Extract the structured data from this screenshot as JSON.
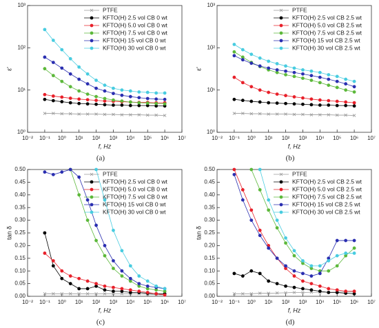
{
  "chart_data": [
    {
      "type": "line",
      "caption": "(a)",
      "xlabel": "f, Hz",
      "ylabel": "ε'",
      "xscale": "log",
      "yscale": "log",
      "x": [
        0.1,
        0.316,
        1,
        3.16,
        10,
        31.6,
        100,
        316,
        1000,
        3162,
        10000,
        31623,
        100000,
        316228,
        1000000
      ],
      "xlim": [
        0.01,
        10000000
      ],
      "xticks": [
        {
          "value": 0.01,
          "label": "10⁻²"
        },
        {
          "value": 0.1,
          "label": "10⁻¹"
        },
        {
          "value": 1,
          "label": "10⁰"
        },
        {
          "value": 10,
          "label": "10¹"
        },
        {
          "value": 100,
          "label": "10²"
        },
        {
          "value": 1000,
          "label": "10³"
        },
        {
          "value": 10000,
          "label": "10⁴"
        },
        {
          "value": 100000,
          "label": "10⁵"
        },
        {
          "value": 1000000,
          "label": "10⁶"
        },
        {
          "value": 10000000,
          "label": "10⁷"
        }
      ],
      "ylim": [
        1,
        1000
      ],
      "yticks": [
        {
          "value": 1,
          "label": "10⁰"
        },
        {
          "value": 10,
          "label": "10¹"
        },
        {
          "value": 100,
          "label": "10²"
        },
        {
          "value": 1000,
          "label": "10³"
        }
      ],
      "series": [
        {
          "name": "PTFE",
          "color": "#9a9a9a",
          "marker": "x",
          "values": [
            2.8,
            2.8,
            2.75,
            2.75,
            2.7,
            2.7,
            2.7,
            2.65,
            2.65,
            2.6,
            2.6,
            2.6,
            2.55,
            2.55,
            2.5
          ]
        },
        {
          "name": "KFTO(H) 2.5 vol CB 0 wt",
          "color": "#000000",
          "marker": "circle",
          "values": [
            6,
            5.6,
            5.3,
            5.0,
            4.8,
            4.7,
            4.6,
            4.5,
            4.4,
            4.4,
            4.3,
            4.3,
            4.3,
            4.2,
            4.2
          ]
        },
        {
          "name": "KFTO(H) 5.0 vol CB 0 wt",
          "color": "#e8202a",
          "marker": "circle",
          "values": [
            7.8,
            7.2,
            6.8,
            6.4,
            6.1,
            5.9,
            5.7,
            5.5,
            5.4,
            5.3,
            5.2,
            5.1,
            5.1,
            5.0,
            5.0
          ]
        },
        {
          "name": "KFTO(H) 7.5 vol CB 0 wt",
          "color": "#5cb83a",
          "marker": "circle",
          "values": [
            32,
            22,
            16,
            12,
            9.5,
            8,
            7,
            6.3,
            5.8,
            5.5,
            5.2,
            5,
            4.9,
            4.8,
            4.7
          ]
        },
        {
          "name": "KFTO(H) 15 vol CB 0 wt",
          "color": "#2a2eb0",
          "marker": "circle",
          "values": [
            60,
            45,
            33,
            24,
            18,
            14,
            11,
            9.5,
            8.3,
            7.5,
            7,
            6.6,
            6.3,
            6.1,
            6
          ]
        },
        {
          "name": "KFTO(H) 30 vol CB 0 wt",
          "color": "#48cce0",
          "marker": "circle",
          "values": [
            270,
            150,
            90,
            55,
            35,
            24,
            17,
            13,
            11,
            10,
            9.5,
            9,
            8.8,
            8.5,
            8.5
          ]
        }
      ]
    },
    {
      "type": "line",
      "caption": "(b)",
      "xlabel": "f, Hz",
      "ylabel": "ε'",
      "xscale": "log",
      "yscale": "log",
      "x": [
        0.1,
        0.316,
        1,
        3.16,
        10,
        31.6,
        100,
        316,
        1000,
        3162,
        10000,
        31623,
        100000,
        316228,
        1000000
      ],
      "xlim": [
        0.01,
        10000000
      ],
      "xticks": [
        {
          "value": 0.01,
          "label": "10⁻²"
        },
        {
          "value": 0.1,
          "label": "10⁻¹"
        },
        {
          "value": 1,
          "label": "10⁰"
        },
        {
          "value": 10,
          "label": "10¹"
        },
        {
          "value": 100,
          "label": "10²"
        },
        {
          "value": 1000,
          "label": "10³"
        },
        {
          "value": 10000,
          "label": "10⁴"
        },
        {
          "value": 100000,
          "label": "10⁵"
        },
        {
          "value": 1000000,
          "label": "10⁶"
        },
        {
          "value": 10000000,
          "label": "10⁷"
        }
      ],
      "ylim": [
        1,
        1000
      ],
      "yticks": [
        {
          "value": 1,
          "label": "10⁰"
        },
        {
          "value": 10,
          "label": "10¹"
        },
        {
          "value": 100,
          "label": "10²"
        },
        {
          "value": 1000,
          "label": "10³"
        }
      ],
      "series": [
        {
          "name": "PTFE",
          "color": "#9a9a9a",
          "marker": "x",
          "values": [
            2.8,
            2.8,
            2.75,
            2.75,
            2.7,
            2.7,
            2.7,
            2.65,
            2.65,
            2.6,
            2.6,
            2.6,
            2.55,
            2.55,
            2.5
          ]
        },
        {
          "name": "KFTO(H) 2.5 vol CB 2.5 wt",
          "color": "#000000",
          "marker": "circle",
          "values": [
            6,
            5.7,
            5.4,
            5.2,
            5.0,
            4.9,
            4.8,
            4.7,
            4.6,
            4.5,
            4.4,
            4.4,
            4.3,
            4.3,
            4.2
          ]
        },
        {
          "name": "KFTO(H) 5.0 vol CB 2.5 wt",
          "color": "#e8202a",
          "marker": "circle",
          "values": [
            20,
            15,
            12,
            10,
            8.8,
            8,
            7.4,
            6.9,
            6.5,
            6.1,
            5.8,
            5.6,
            5.4,
            5.2,
            5
          ]
        },
        {
          "name": "KFTO(H) 7.5 vol CB 2.5 wt",
          "color": "#5cb83a",
          "marker": "circle",
          "values": [
            80,
            60,
            45,
            36,
            30,
            26,
            23,
            21,
            19,
            17,
            15,
            13,
            11.5,
            10,
            9
          ]
        },
        {
          "name": "KFTO(H) 15 vol CB 2.5 wt",
          "color": "#2a2eb0",
          "marker": "circle",
          "values": [
            65,
            52,
            43,
            37,
            33,
            30,
            28,
            26,
            24,
            22,
            20,
            18,
            16,
            14,
            12
          ]
        },
        {
          "name": "KFTO(H) 30 vol CB 2.5 wt",
          "color": "#48cce0",
          "marker": "circle",
          "values": [
            120,
            90,
            70,
            57,
            48,
            42,
            37,
            33,
            30,
            28,
            26,
            23,
            21,
            18,
            16
          ]
        }
      ]
    },
    {
      "type": "line",
      "caption": "(c)",
      "xlabel": "f, Hz",
      "ylabel": "tan δ",
      "xscale": "log",
      "yscale": "linear",
      "x": [
        0.1,
        0.316,
        1,
        3.16,
        10,
        31.6,
        100,
        316,
        1000,
        3162,
        10000,
        31623,
        100000,
        316228,
        1000000
      ],
      "xlim": [
        0.01,
        10000000
      ],
      "xticks": [
        {
          "value": 0.01,
          "label": "10⁻²"
        },
        {
          "value": 0.1,
          "label": "10⁻¹"
        },
        {
          "value": 1,
          "label": "10⁰"
        },
        {
          "value": 10,
          "label": "10¹"
        },
        {
          "value": 100,
          "label": "10²"
        },
        {
          "value": 1000,
          "label": "10³"
        },
        {
          "value": 10000,
          "label": "10⁴"
        },
        {
          "value": 100000,
          "label": "10⁵"
        },
        {
          "value": 1000000,
          "label": "10⁶"
        },
        {
          "value": 10000000,
          "label": "10⁷"
        }
      ],
      "ylim": [
        0,
        0.5
      ],
      "yticks": [
        {
          "value": 0,
          "label": "0.00"
        },
        0.05,
        {
          "value": 0.1,
          "label": "0.10"
        },
        0.15,
        {
          "value": 0.2,
          "label": "0.20"
        },
        0.25,
        {
          "value": 0.3,
          "label": "0.30"
        },
        0.35,
        {
          "value": 0.4,
          "label": "0.40"
        },
        0.45,
        {
          "value": 0.5,
          "label": "0.50"
        }
      ],
      "series": [
        {
          "name": "PTFE",
          "color": "#9a9a9a",
          "marker": "x",
          "values": [
            0.01,
            0.01,
            0.01,
            0.01,
            0.01,
            0.01,
            0.01,
            0.01,
            0.01,
            0.01,
            0.01,
            0.01,
            0.008,
            0.006,
            0.005
          ]
        },
        {
          "name": "KFTO(H) 2.5 vol CB 0 wt",
          "color": "#000000",
          "marker": "circle",
          "values": [
            0.25,
            0.12,
            0.07,
            0.05,
            0.03,
            0.03,
            0.04,
            0.025,
            0.02,
            0.02,
            0.015,
            0.015,
            0.012,
            0.01,
            0.01
          ]
        },
        {
          "name": "KFTO(H) 5.0 vol CB 0 wt",
          "color": "#e8202a",
          "marker": "circle",
          "values": [
            0.17,
            0.14,
            0.1,
            0.08,
            0.07,
            0.06,
            0.05,
            0.04,
            0.035,
            0.03,
            0.025,
            0.02,
            0.015,
            0.01,
            0.005
          ]
        },
        {
          "name": "KFTO(H) 7.5 vol CB 0 wt",
          "color": "#5cb83a",
          "marker": "circle",
          "values": [
            null,
            null,
            null,
            0.5,
            0.4,
            0.3,
            0.22,
            0.16,
            0.11,
            0.08,
            0.06,
            0.04,
            0.03,
            0.025,
            0.02
          ]
        },
        {
          "name": "KFTO(H) 15 vol CB 0 wt",
          "color": "#2a2eb0",
          "marker": "circle",
          "values": [
            0.49,
            0.48,
            0.49,
            0.5,
            0.47,
            0.38,
            0.28,
            0.2,
            0.14,
            0.1,
            0.07,
            0.05,
            0.04,
            0.035,
            0.03
          ]
        },
        {
          "name": "KFTO(H) 30 vol CB 0 wt",
          "color": "#48cce0",
          "marker": "circle",
          "values": [
            null,
            null,
            null,
            null,
            null,
            null,
            0.5,
            0.38,
            0.26,
            0.18,
            0.12,
            0.08,
            0.06,
            0.04,
            0.03
          ]
        }
      ]
    },
    {
      "type": "line",
      "caption": "(d)",
      "xlabel": "f, Hz",
      "ylabel": "tan δ",
      "xscale": "log",
      "yscale": "linear",
      "x": [
        0.1,
        0.316,
        1,
        3.16,
        10,
        31.6,
        100,
        316,
        1000,
        3162,
        10000,
        31623,
        100000,
        316228,
        1000000
      ],
      "xlim": [
        0.01,
        10000000
      ],
      "xticks": [
        {
          "value": 0.01,
          "label": "10⁻²"
        },
        {
          "value": 0.1,
          "label": "10⁻¹"
        },
        {
          "value": 1,
          "label": "10⁰"
        },
        {
          "value": 10,
          "label": "10¹"
        },
        {
          "value": 100,
          "label": "10²"
        },
        {
          "value": 1000,
          "label": "10³"
        },
        {
          "value": 10000,
          "label": "10⁴"
        },
        {
          "value": 100000,
          "label": "10⁵"
        },
        {
          "value": 1000000,
          "label": "10⁶"
        },
        {
          "value": 10000000,
          "label": "10⁷"
        }
      ],
      "ylim": [
        0,
        0.5
      ],
      "yticks": [
        {
          "value": 0,
          "label": "0.00"
        },
        0.05,
        {
          "value": 0.1,
          "label": "0.10"
        },
        0.15,
        {
          "value": 0.2,
          "label": "0.20"
        },
        0.25,
        {
          "value": 0.3,
          "label": "0.30"
        },
        0.35,
        {
          "value": 0.4,
          "label": "0.40"
        },
        0.45,
        {
          "value": 0.5,
          "label": "0.50"
        }
      ],
      "series": [
        {
          "name": "PTFE",
          "color": "#9a9a9a",
          "marker": "x",
          "values": [
            0.01,
            0.01,
            0.01,
            0.012,
            0.012,
            0.013,
            0.014,
            0.015,
            0.015,
            0.016,
            0.016,
            0.016,
            0.017,
            0.017,
            0.017
          ]
        },
        {
          "name": "KFTO(H) 2.5 vol CB 2.5 wt",
          "color": "#000000",
          "marker": "circle",
          "values": [
            0.09,
            0.08,
            0.1,
            0.09,
            0.06,
            0.05,
            0.04,
            0.035,
            0.03,
            0.025,
            0.02,
            0.015,
            0.015,
            0.012,
            0.01
          ]
        },
        {
          "name": "KFTO(H) 5.0 vol CB 2.5 wt",
          "color": "#e8202a",
          "marker": "circle",
          "values": [
            0.5,
            0.42,
            0.34,
            0.26,
            0.2,
            0.15,
            0.11,
            0.08,
            0.06,
            0.05,
            0.04,
            0.03,
            0.025,
            0.02,
            0.02
          ]
        },
        {
          "name": "KFTO(H) 7.5 vol CB 2.5 wt",
          "color": "#5cb83a",
          "marker": "circle",
          "values": [
            null,
            null,
            0.5,
            0.42,
            0.34,
            0.27,
            0.21,
            0.16,
            0.13,
            0.11,
            0.1,
            0.1,
            0.12,
            0.16,
            0.19
          ]
        },
        {
          "name": "KFTO(H) 15 vol CB 2.5 wt",
          "color": "#2a2eb0",
          "marker": "circle",
          "values": [
            0.48,
            0.38,
            0.3,
            0.24,
            0.19,
            0.15,
            0.12,
            0.1,
            0.09,
            0.08,
            0.09,
            0.15,
            0.22,
            0.22,
            0.22
          ]
        },
        {
          "name": "KFTO(H) 30 vol CB 2.5 wt",
          "color": "#48cce0",
          "marker": "circle",
          "values": [
            null,
            null,
            null,
            0.5,
            0.38,
            0.3,
            0.23,
            0.18,
            0.14,
            0.12,
            0.12,
            0.14,
            0.16,
            0.17,
            0.17
          ]
        }
      ]
    }
  ]
}
